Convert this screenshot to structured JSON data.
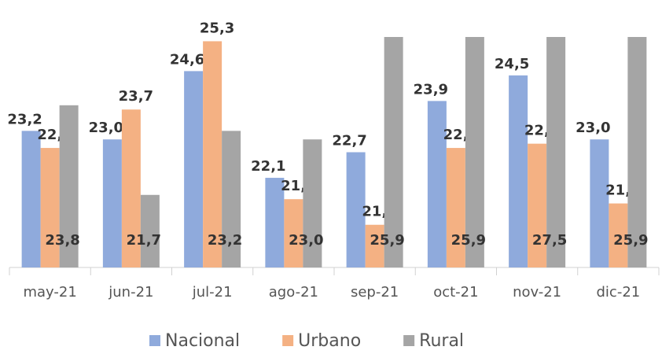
{
  "chart_data": {
    "type": "bar",
    "categories": [
      "may-21",
      "jun-21",
      "jul-21",
      "ago-21",
      "sep-21",
      "oct-21",
      "nov-21",
      "dic-21"
    ],
    "series": [
      {
        "name": "Nacional",
        "color": "#8faadc",
        "values": [
          23.2,
          23.0,
          24.6,
          22.1,
          22.7,
          23.9,
          24.5,
          23.0
        ],
        "value_labels": [
          "23,2",
          "23,0",
          "24,6",
          "22,1",
          "22,7",
          "23,9",
          "24,5",
          "23,0"
        ]
      },
      {
        "name": "Urbano",
        "color": "#f4b183",
        "values": [
          22.8,
          23.7,
          25.3,
          21.6,
          21.0,
          22.8,
          22.9,
          21.5
        ],
        "value_labels": [
          "22,8",
          "23,7",
          "25,3",
          "21,6",
          "21,0",
          "22,8",
          "22,9",
          "21,5"
        ]
      },
      {
        "name": "Rural",
        "color": "#a5a5a5",
        "values": [
          23.8,
          21.7,
          23.2,
          23.0,
          25.9,
          25.9,
          27.5,
          25.9
        ],
        "value_labels": [
          "23,8",
          "21,7",
          "23,2",
          "23,0",
          "25,9",
          "25,9",
          "27,5",
          "25,9"
        ]
      }
    ],
    "ylim": [
      20,
      25.4
    ],
    "grid": false,
    "legend": "bottom"
  }
}
